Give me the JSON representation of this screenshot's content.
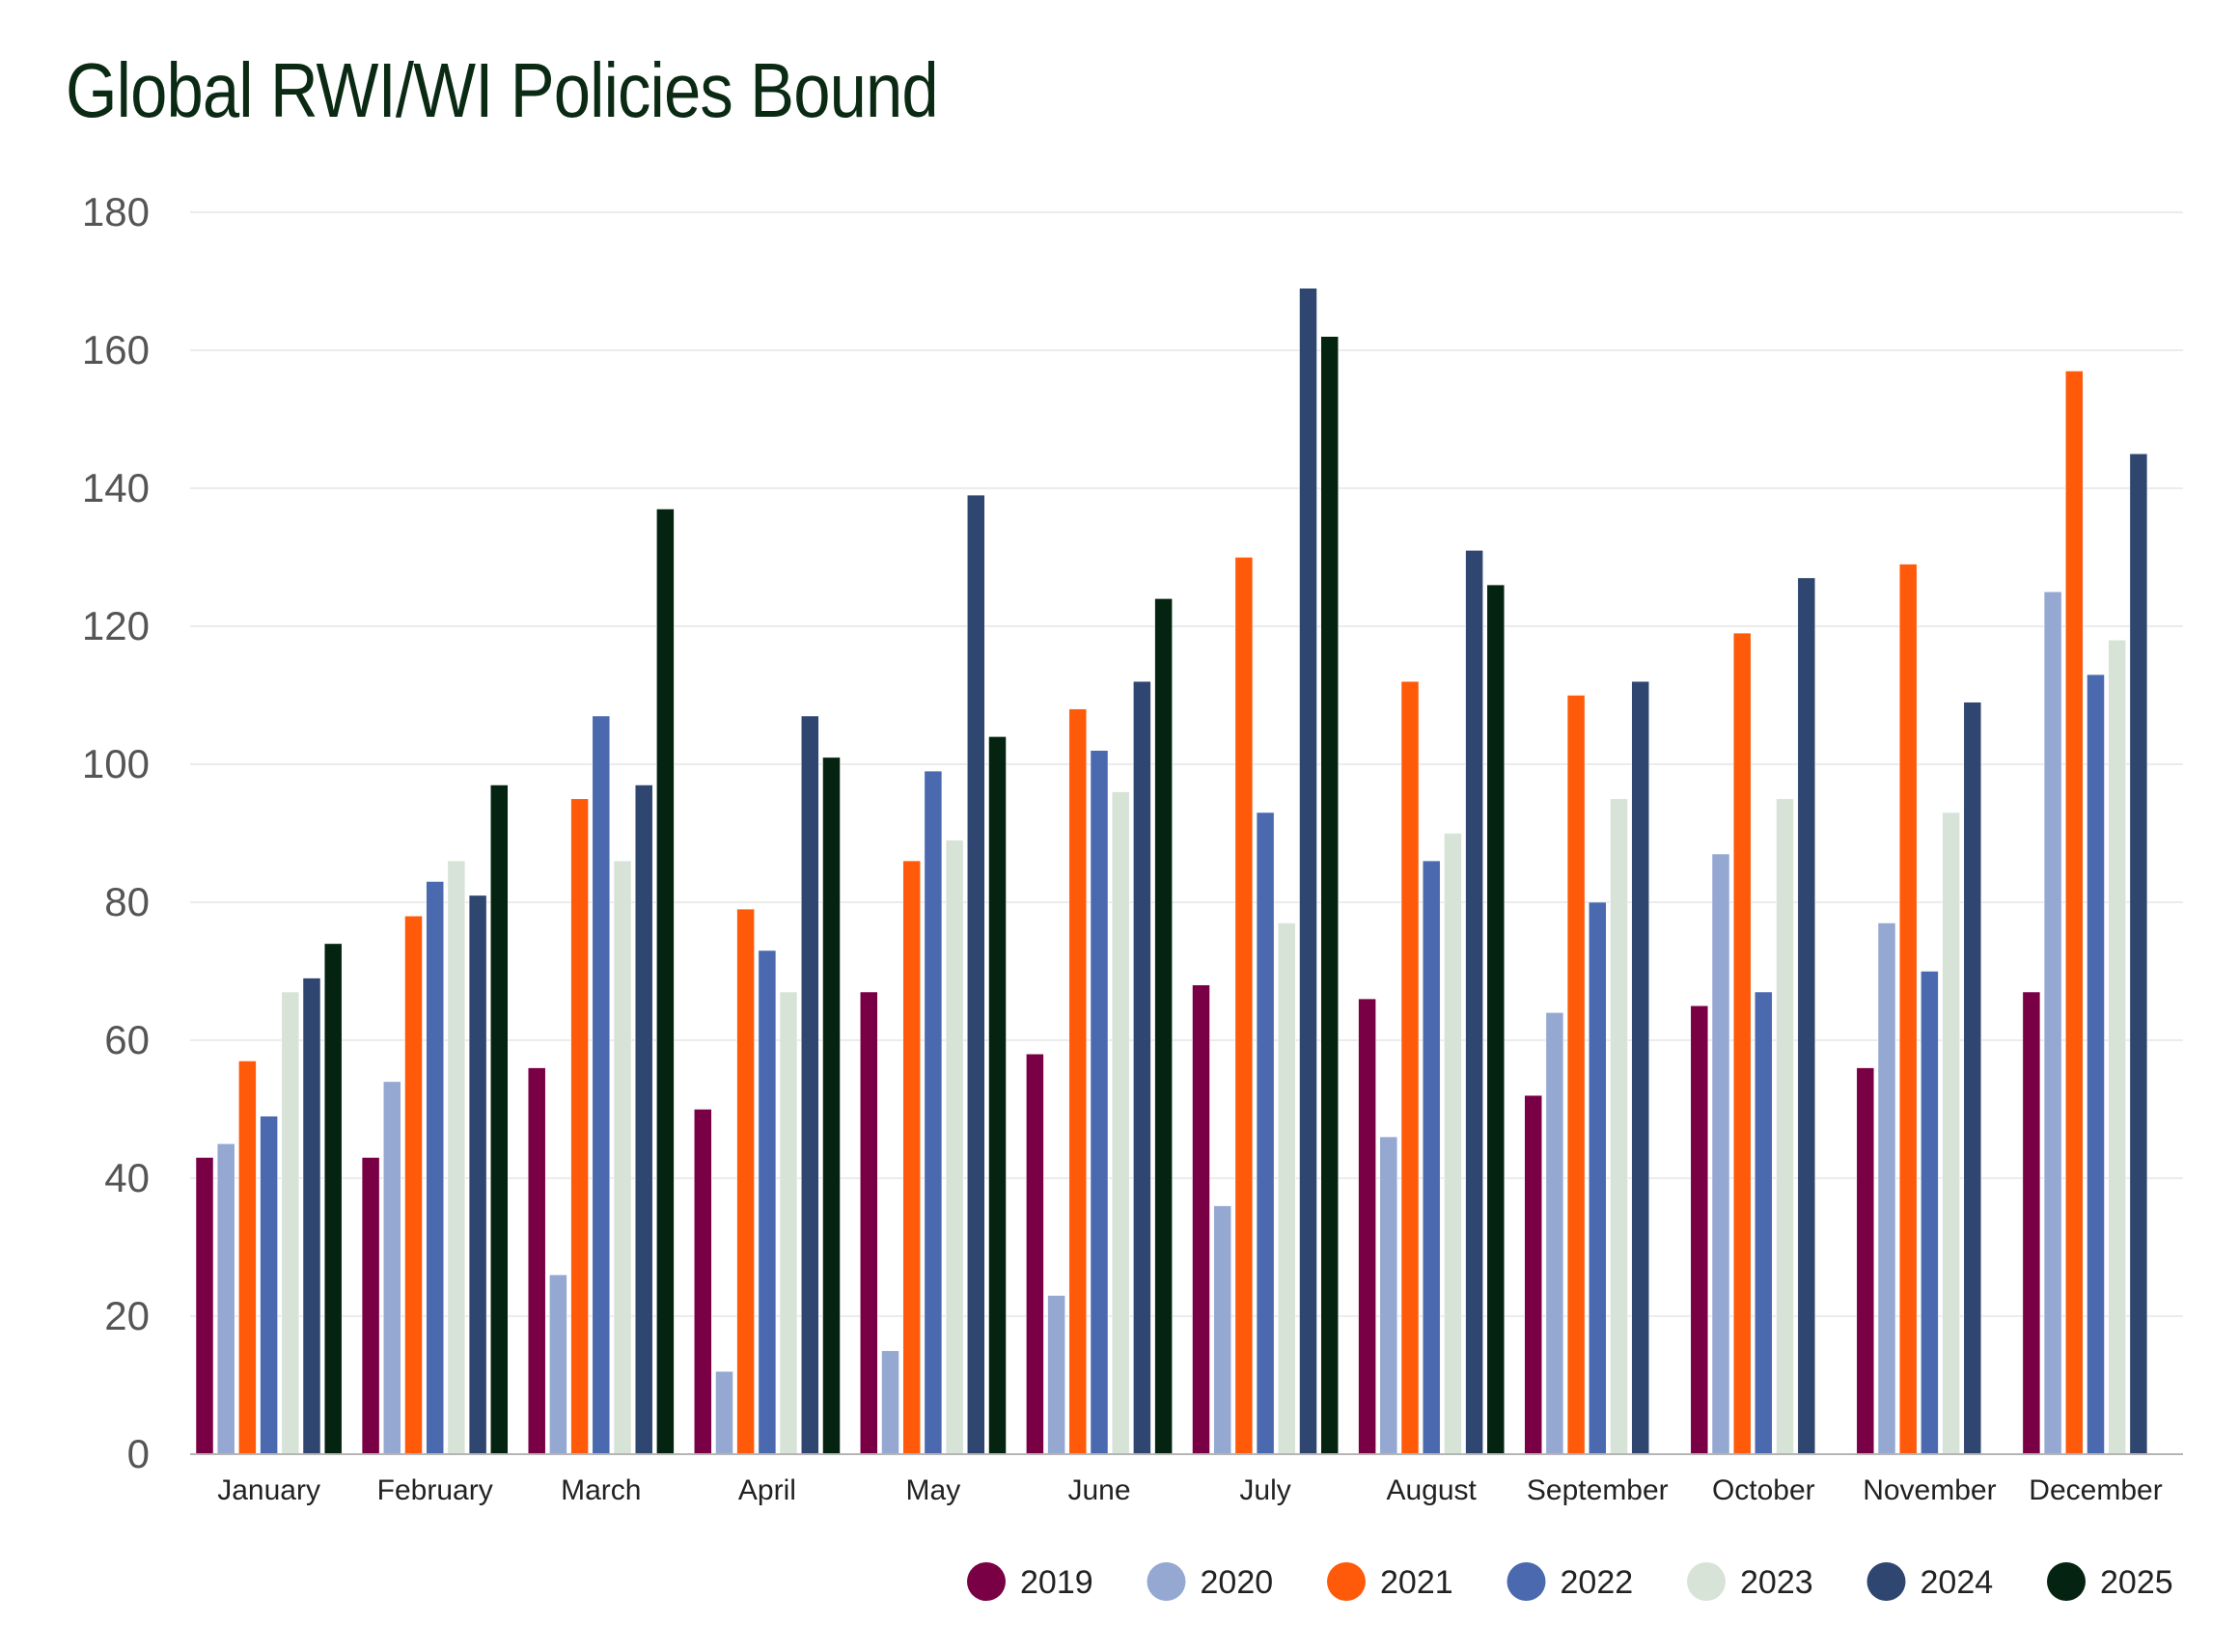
{
  "chart_data": {
    "type": "bar",
    "title": "Global RWI/WI Policies Bound",
    "xlabel": "",
    "ylabel": "",
    "ylim": [
      0,
      180
    ],
    "yticks": [
      0,
      20,
      40,
      60,
      80,
      100,
      120,
      140,
      160,
      180
    ],
    "grid": true,
    "legend_position": "bottom-right",
    "categories": [
      "January",
      "February",
      "March",
      "April",
      "May",
      "June",
      "July",
      "August",
      "September",
      "October",
      "November",
      "December"
    ],
    "series": [
      {
        "name": "2019",
        "color": "#7a0046",
        "values": [
          43,
          43,
          56,
          50,
          67,
          58,
          68,
          66,
          52,
          65,
          56,
          67
        ]
      },
      {
        "name": "2020",
        "color": "#95a8d2",
        "values": [
          45,
          54,
          26,
          12,
          15,
          23,
          36,
          46,
          64,
          87,
          77,
          125
        ]
      },
      {
        "name": "2021",
        "color": "#ff5a0a",
        "values": [
          57,
          78,
          95,
          79,
          86,
          108,
          130,
          112,
          110,
          119,
          129,
          157
        ]
      },
      {
        "name": "2022",
        "color": "#4a69ae",
        "values": [
          49,
          83,
          107,
          73,
          99,
          102,
          93,
          86,
          80,
          67,
          70,
          113
        ]
      },
      {
        "name": "2023",
        "color": "#d8e3d8",
        "values": [
          67,
          86,
          86,
          67,
          89,
          96,
          77,
          90,
          95,
          95,
          93,
          118
        ]
      },
      {
        "name": "2024",
        "color": "#2f4670",
        "values": [
          69,
          81,
          97,
          107,
          139,
          112,
          169,
          131,
          112,
          127,
          109,
          145
        ]
      },
      {
        "name": "2025",
        "color": "#042411",
        "values": [
          74,
          97,
          137,
          101,
          104,
          124,
          162,
          126,
          null,
          null,
          null,
          null
        ]
      }
    ]
  }
}
